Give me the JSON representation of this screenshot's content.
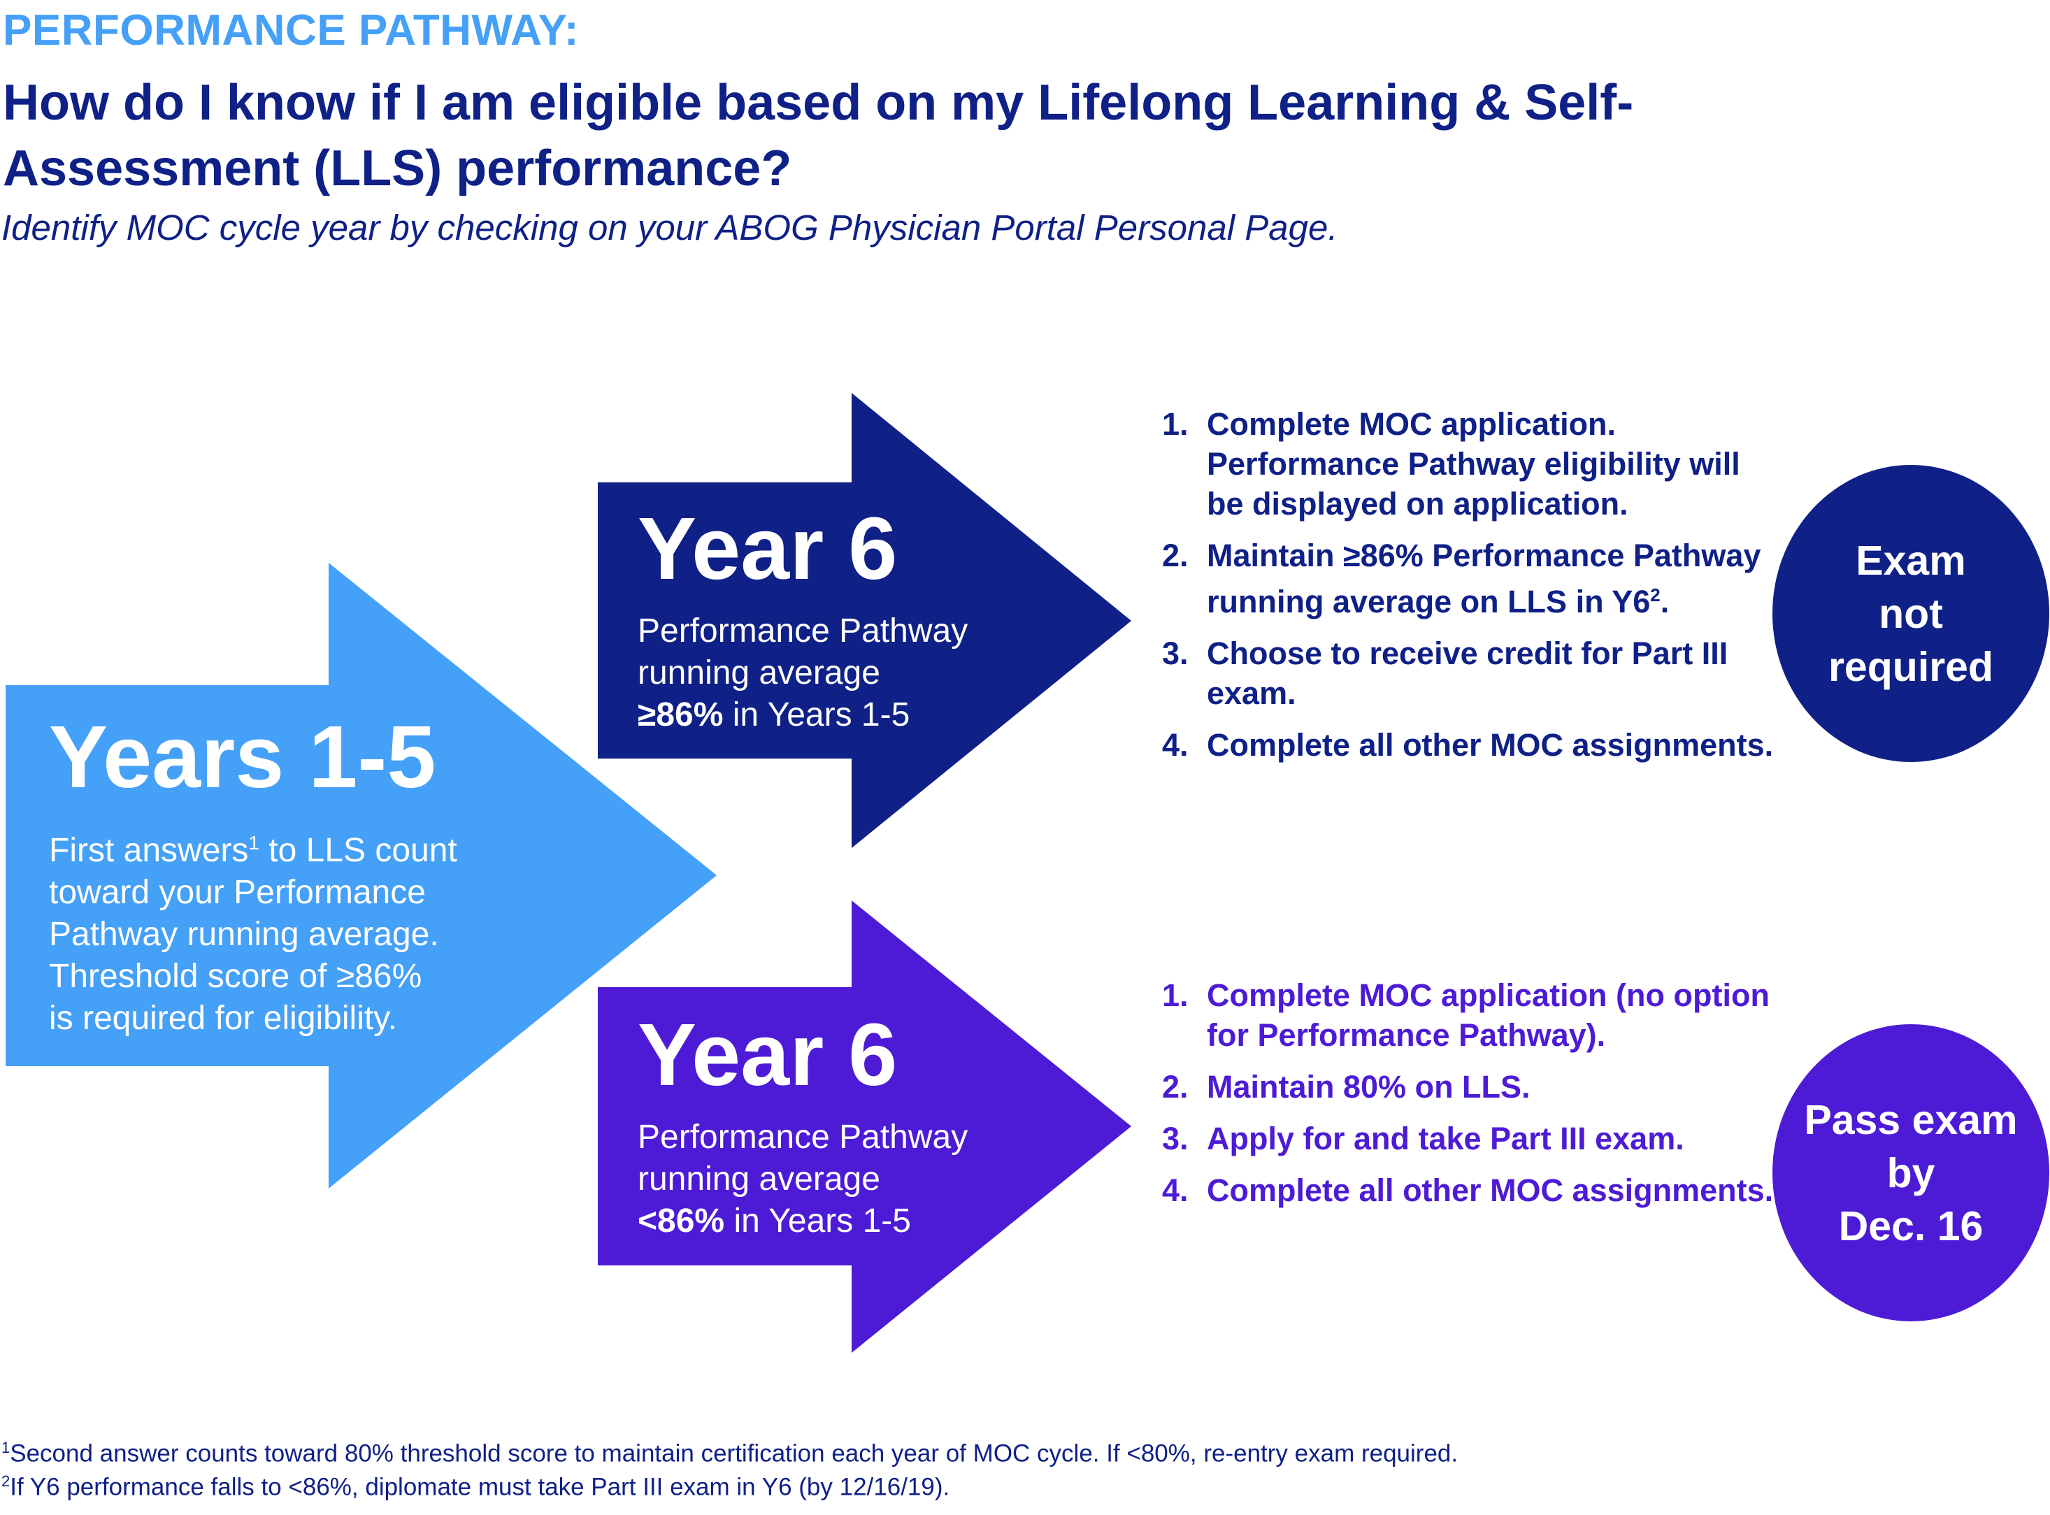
{
  "header": {
    "kicker": "PERFORMANCE PATHWAY:",
    "title": "How do I know if I am eligible based on my Lifelong Learning & Self-Assessment (LLS) performance?",
    "subtitle": "Identify MOC cycle year by checking on your ABOG Physician Portal Personal Page."
  },
  "colors": {
    "light_blue": "#45a0f7",
    "navy": "#0f2087",
    "purple": "#4d1bd6"
  },
  "years_1_5": {
    "heading": "Years 1-5",
    "line1_pre": "First answers",
    "line1_sup": "1",
    "line1_post": " to LLS count",
    "line2": "toward your Performance",
    "line3": "Pathway running average.",
    "line4": "Threshold score of ≥86%",
    "line5": "is required for eligibility."
  },
  "year6_high": {
    "heading": "Year 6",
    "line1": "Performance Pathway",
    "line2": "running average",
    "bold": "≥86%",
    "rest": " in Years 1-5",
    "steps": [
      {
        "num": "1.",
        "text": "Complete MOC application. Performance Pathway eligibility will be displayed on application."
      },
      {
        "num": "2.",
        "text_pre": "Maintain ≥86% Performance Pathway running average on LLS in Y6",
        "sup": "2",
        "text_post": "."
      },
      {
        "num": "3.",
        "text": "Choose to receive credit for Part III exam."
      },
      {
        "num": "4.",
        "text": "Complete all other MOC assignments."
      }
    ],
    "outcome": [
      "Exam",
      "not",
      "required"
    ]
  },
  "year6_low": {
    "heading": "Year 6",
    "line1": "Performance Pathway",
    "line2": "running average",
    "bold": "<86%",
    "rest": " in Years 1-5",
    "steps": [
      {
        "num": "1.",
        "text": "Complete MOC application (no option for Performance Pathway)."
      },
      {
        "num": "2.",
        "text": "Maintain 80% on LLS."
      },
      {
        "num": "3.",
        "text": "Apply for and take Part III exam."
      },
      {
        "num": "4.",
        "text": "Complete all other MOC assignments."
      }
    ],
    "outcome": [
      "Pass exam",
      "by",
      "Dec. 16"
    ]
  },
  "footnotes": [
    {
      "sup": "1",
      "text": "Second answer counts toward 80% threshold score to maintain certification each year of MOC cycle. If <80%, re-entry exam required."
    },
    {
      "sup": "2",
      "text": "If Y6 performance falls to <86%, diplomate must take Part III exam in Y6 (by 12/16/19)."
    }
  ]
}
